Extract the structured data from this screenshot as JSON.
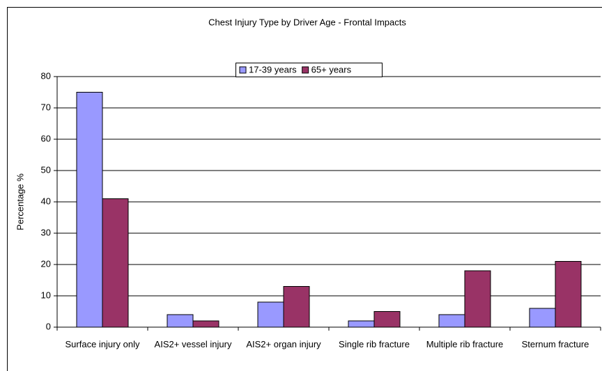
{
  "chart_data": {
    "type": "bar",
    "title": "Chest Injury Type by Driver Age - Frontal Impacts",
    "y_label": "Percentage %",
    "categories": [
      "Surface injury only",
      "AIS2+ vessel injury",
      "AIS2+ organ injury",
      "Single rib fracture",
      "Multiple rib fracture",
      "Sternum fracture"
    ],
    "series": [
      {
        "name": "17-39 years",
        "color": "#9999ff",
        "values": [
          75,
          4,
          8,
          2,
          4,
          6
        ]
      },
      {
        "name": "65+ years",
        "color": "#993366",
        "values": [
          41,
          2,
          13,
          5,
          18,
          21
        ]
      }
    ],
    "ylim": [
      0,
      80
    ],
    "yticks": [
      0,
      10,
      20,
      30,
      40,
      50,
      60,
      70,
      80
    ],
    "grid": true,
    "legend": "top"
  }
}
